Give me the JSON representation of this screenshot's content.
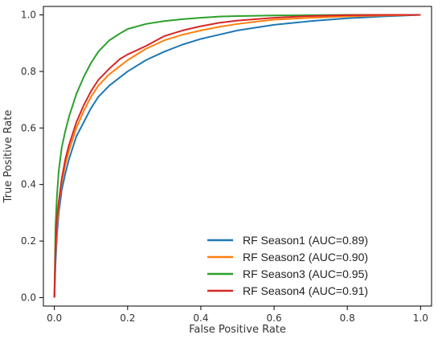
{
  "chart_data": {
    "type": "line",
    "xlabel": "False Positive Rate",
    "ylabel": "True Positive Rate",
    "xlim": [
      -0.03,
      1.03
    ],
    "ylim": [
      -0.03,
      1.03
    ],
    "xticks": [
      "0.0",
      "0.2",
      "0.4",
      "0.6",
      "0.8",
      "1.0"
    ],
    "yticks": [
      "0.0",
      "0.2",
      "0.4",
      "0.6",
      "0.8",
      "1.0"
    ],
    "grid": false,
    "legend_position": "lower-right",
    "series": [
      {
        "name": "RF Season1 (AUC=0.89)",
        "color": "#1f77b4",
        "x": [
          0,
          0.003,
          0.007,
          0.012,
          0.02,
          0.03,
          0.04,
          0.05,
          0.06,
          0.08,
          0.1,
          0.12,
          0.15,
          0.18,
          0.2,
          0.25,
          0.3,
          0.35,
          0.4,
          0.45,
          0.5,
          0.55,
          0.6,
          0.7,
          0.8,
          0.9,
          1.0
        ],
        "y": [
          0,
          0.12,
          0.22,
          0.3,
          0.38,
          0.44,
          0.49,
          0.53,
          0.57,
          0.62,
          0.67,
          0.71,
          0.75,
          0.78,
          0.8,
          0.84,
          0.87,
          0.895,
          0.915,
          0.93,
          0.945,
          0.955,
          0.965,
          0.978,
          0.988,
          0.995,
          1.0
        ]
      },
      {
        "name": "RF Season2 (AUC=0.90)",
        "color": "#ff7f0e",
        "x": [
          0,
          0.003,
          0.007,
          0.012,
          0.02,
          0.03,
          0.04,
          0.05,
          0.06,
          0.08,
          0.1,
          0.12,
          0.15,
          0.18,
          0.2,
          0.25,
          0.3,
          0.35,
          0.4,
          0.45,
          0.5,
          0.55,
          0.6,
          0.7,
          0.8,
          0.9,
          1.0
        ],
        "y": [
          0,
          0.15,
          0.25,
          0.33,
          0.41,
          0.47,
          0.52,
          0.56,
          0.6,
          0.66,
          0.71,
          0.75,
          0.79,
          0.82,
          0.84,
          0.88,
          0.91,
          0.93,
          0.945,
          0.958,
          0.968,
          0.976,
          0.983,
          0.99,
          0.995,
          0.998,
          1.0
        ]
      },
      {
        "name": "RF Season3 (AUC=0.95)",
        "color": "#2ca02c",
        "x": [
          0,
          0.003,
          0.007,
          0.012,
          0.02,
          0.03,
          0.04,
          0.05,
          0.06,
          0.08,
          0.1,
          0.12,
          0.15,
          0.18,
          0.2,
          0.25,
          0.3,
          0.35,
          0.4,
          0.45,
          0.5,
          0.6,
          0.7,
          0.8,
          0.9,
          1.0
        ],
        "y": [
          0,
          0.25,
          0.36,
          0.45,
          0.53,
          0.59,
          0.64,
          0.68,
          0.72,
          0.78,
          0.83,
          0.87,
          0.91,
          0.935,
          0.95,
          0.968,
          0.978,
          0.985,
          0.99,
          0.994,
          0.996,
          0.998,
          0.999,
          1.0,
          1.0,
          1.0
        ]
      },
      {
        "name": "RF Season4 (AUC=0.91)",
        "color": "#d62728",
        "x": [
          0,
          0.003,
          0.007,
          0.012,
          0.02,
          0.03,
          0.04,
          0.05,
          0.06,
          0.08,
          0.1,
          0.12,
          0.15,
          0.18,
          0.2,
          0.25,
          0.3,
          0.35,
          0.4,
          0.45,
          0.5,
          0.6,
          0.7,
          0.8,
          0.9,
          1.0
        ],
        "y": [
          0,
          0.17,
          0.28,
          0.34,
          0.42,
          0.49,
          0.54,
          0.58,
          0.62,
          0.68,
          0.73,
          0.77,
          0.81,
          0.845,
          0.86,
          0.89,
          0.925,
          0.945,
          0.96,
          0.972,
          0.98,
          0.99,
          0.996,
          0.999,
          1.0,
          1.0
        ]
      }
    ]
  }
}
